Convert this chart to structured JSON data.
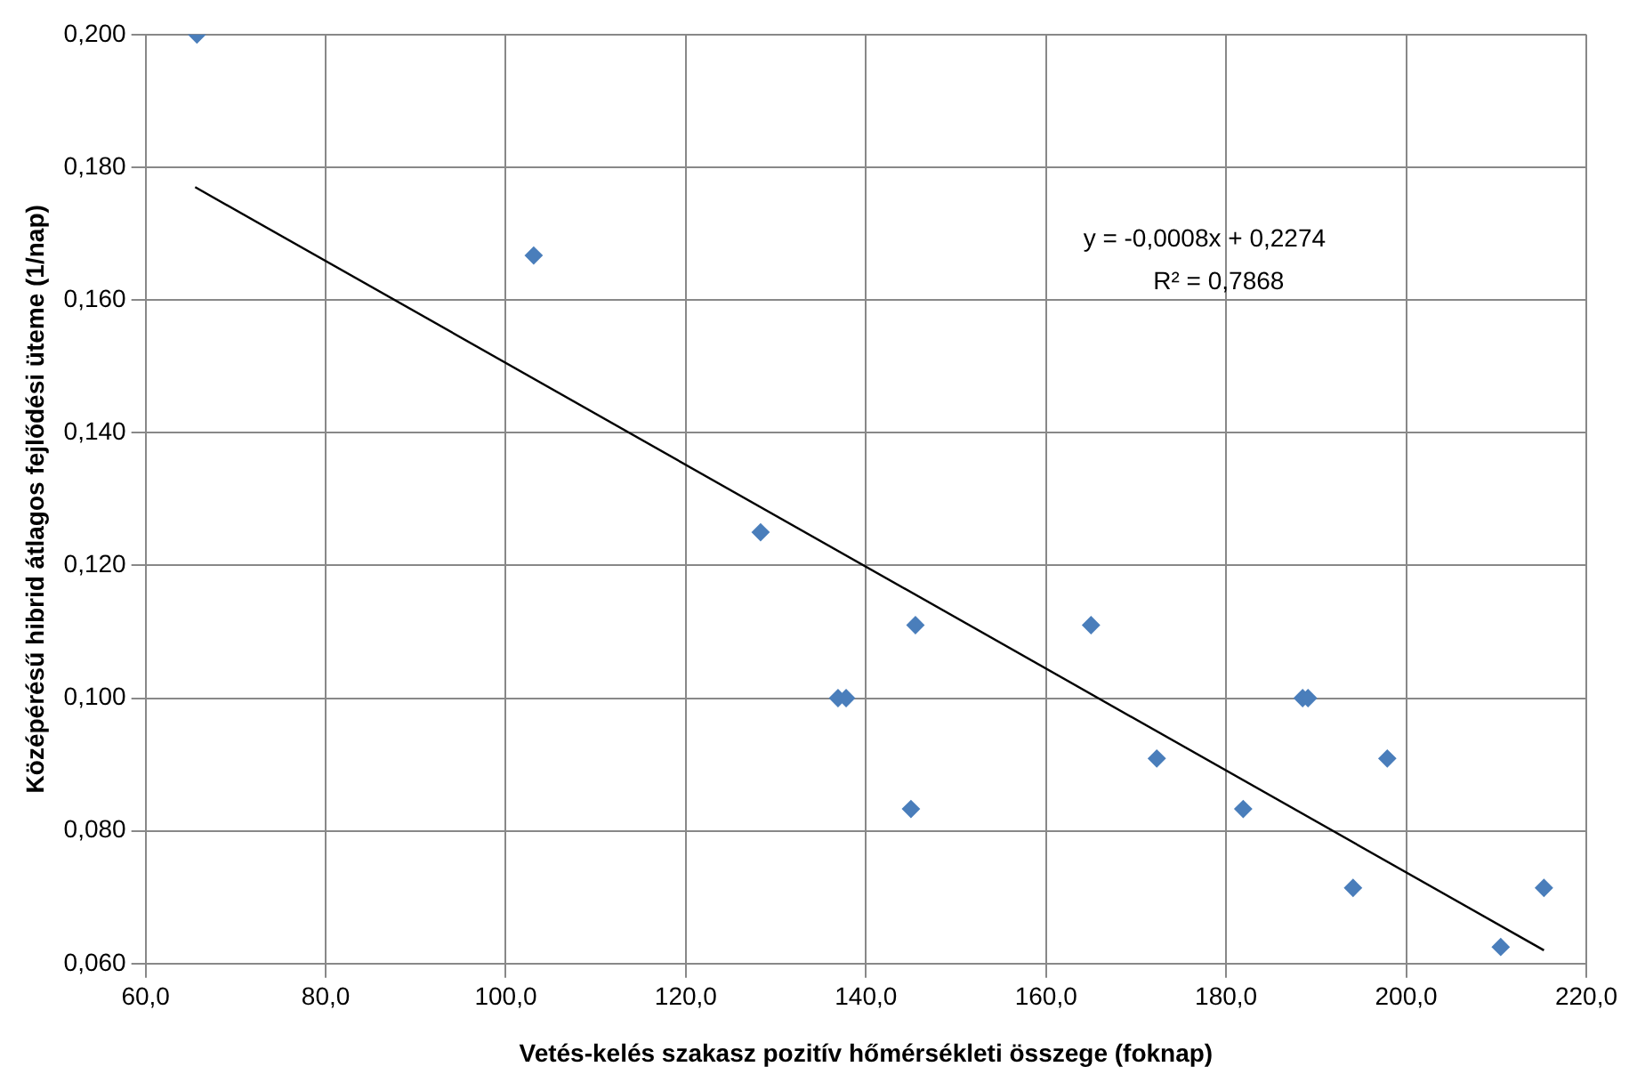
{
  "chart_data": {
    "type": "scatter",
    "xlabel": "Vetés-kelés szakasz pozitív hőmérsékleti összege (foknap)",
    "ylabel": "Középérésű hibrid átlagos fejlődési üteme (1/nap)",
    "series": [
      {
        "color": "#4a7ebb",
        "x": [
          65.7,
          103.1,
          128.3,
          136.9,
          137.8,
          145.5,
          145.0,
          165.0,
          172.3,
          181.9,
          188.5,
          189.1,
          197.9,
          194.1,
          210.5,
          215.3
        ],
        "values": [
          0.2,
          0.1667,
          0.125,
          0.1,
          0.1,
          0.111,
          0.0833,
          0.111,
          0.0909,
          0.0833,
          0.1,
          0.1,
          0.0909,
          0.0714,
          0.0625,
          0.0714
        ]
      },
      {
        "type": "line",
        "color": "#000000",
        "x": [
          65.5,
          215.3
        ],
        "values": [
          0.177,
          0.062
        ],
        "marker": "none"
      }
    ],
    "annotations": [
      "y = -0,0008x + 0,2274",
      "R² = 0,7868"
    ],
    "xlim": [
      60,
      220
    ],
    "ylim": [
      0.06,
      0.2
    ],
    "xticks": [
      {
        "value": 60,
        "label": "60,0"
      },
      {
        "value": 80,
        "label": "80,0"
      },
      {
        "value": 100,
        "label": "100,0"
      },
      {
        "value": 120,
        "label": "120,0"
      },
      {
        "value": 140,
        "label": "140,0"
      },
      {
        "value": 160,
        "label": "160,0"
      },
      {
        "value": 180,
        "label": "180,0"
      },
      {
        "value": 200,
        "label": "200,0"
      },
      {
        "value": 220,
        "label": "220,0"
      }
    ],
    "yticks": [
      {
        "value": 0.06,
        "label": "0,060"
      },
      {
        "value": 0.08,
        "label": "0,080"
      },
      {
        "value": 0.1,
        "label": "0,100"
      },
      {
        "value": 0.12,
        "label": "0,120"
      },
      {
        "value": 0.14,
        "label": "0,140"
      },
      {
        "value": 0.16,
        "label": "0,160"
      },
      {
        "value": 0.18,
        "label": "0,180"
      },
      {
        "value": 0.2,
        "label": "0,200"
      }
    ],
    "grid": true,
    "legend": false,
    "marker": "diamond"
  }
}
